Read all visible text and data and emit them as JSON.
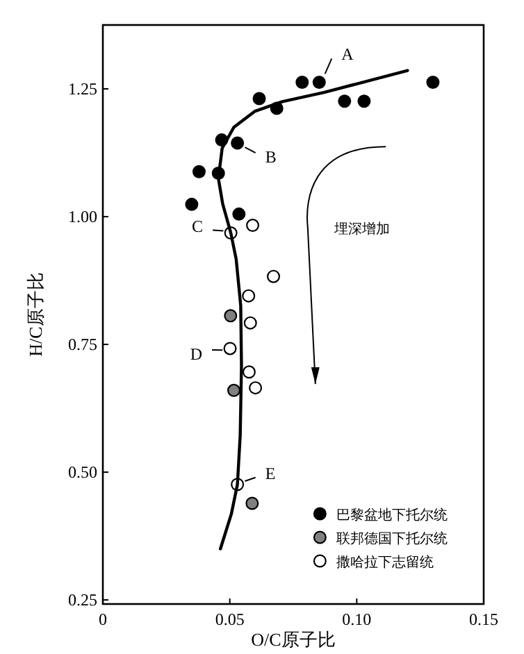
{
  "chart_data": {
    "type": "scatter",
    "xlabel": "O/C原子比",
    "ylabel": "H/C原子比",
    "xlim": [
      0,
      0.15
    ],
    "ylim": [
      0.242,
      1.375
    ],
    "xticks": [
      0,
      0.05,
      {
        "value": 0.1,
        "label": "0.10"
      },
      0.15
    ],
    "yticks": [
      0.25,
      {
        "value": 0.5,
        "label": "0.50"
      },
      0.75,
      {
        "value": 1,
        "label": "1.00"
      },
      1.25
    ],
    "grid": false,
    "legend": "bottom right",
    "marker": "circle",
    "series": [
      {
        "name": "巴黎盆地下托尔统",
        "color": "#000000",
        "x": [
          0.0785,
          0.0852,
          0.13,
          0.0616,
          0.0685,
          0.0952,
          0.1029,
          0.0468,
          0.053,
          0.0379,
          0.0455,
          0.035,
          0.0536
        ],
        "values": [
          1.263,
          1.263,
          1.263,
          1.231,
          1.212,
          1.226,
          1.226,
          1.15,
          1.144,
          1.088,
          1.085,
          1.024,
          1.005
        ]
      },
      {
        "name": "联邦德国下托尔统",
        "color": "#808080",
        "x": [
          0.0503,
          0.0516,
          0.0588
        ],
        "values": [
          0.806,
          0.66,
          0.439
        ]
      },
      {
        "name": "撒哈拉下志留统",
        "color": "#ffffff",
        "x": [
          0.0504,
          0.059,
          0.0672,
          0.0574,
          0.0581,
          0.0501,
          0.0576,
          0.0601,
          0.053
        ],
        "values": [
          0.968,
          0.983,
          0.883,
          0.845,
          0.792,
          0.742,
          0.696,
          0.665,
          0.476
        ]
      },
      {
        "type": "line",
        "color": "#000000",
        "line_style": "solid",
        "marker": "none",
        "x": [
          0.0463,
          0.0506,
          0.053,
          0.0541,
          0.0546,
          0.0543,
          0.0525,
          0.0504,
          0.0472,
          0.0455,
          0.047,
          0.0516,
          0.0598,
          0.0707,
          0.0871,
          0.12
        ],
        "values": [
          0.35,
          0.418,
          0.476,
          0.572,
          0.708,
          0.826,
          0.917,
          0.968,
          1.025,
          1.075,
          1.134,
          1.175,
          1.206,
          1.225,
          1.243,
          1.286
        ]
      }
    ],
    "annotations": [
      {
        "text": "A",
        "x": 0.0852,
        "y": 1.263
      },
      {
        "text": "B",
        "x": 0.053,
        "y": 1.144
      },
      {
        "text": "C",
        "x": 0.0504,
        "y": 0.968
      },
      {
        "text": "D",
        "x": 0.0501,
        "y": 0.742
      },
      {
        "text": "E",
        "x": 0.053,
        "y": 0.476
      },
      "埋深增加"
    ]
  }
}
